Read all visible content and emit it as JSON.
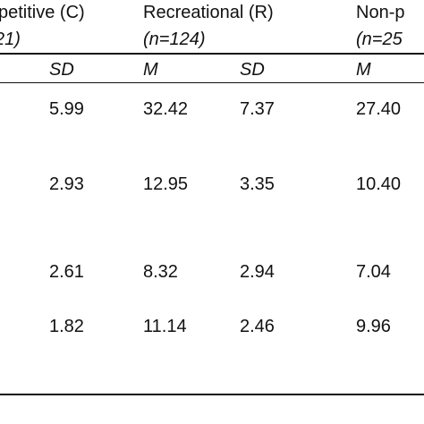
{
  "table": {
    "group_headers": [
      "petitive (C)",
      "Recreational (R)",
      "Non-p"
    ],
    "group_sizes": [
      "21)",
      "(n=124)",
      "(n=25"
    ],
    "stat_headers": [
      "SD",
      "M",
      "SD",
      "M"
    ],
    "rows": [
      [
        "5.99",
        "32.42",
        "7.37",
        "27.40"
      ],
      [
        "2.93",
        "12.95",
        "3.35",
        "10.40"
      ],
      [
        "2.61",
        "8.32",
        "2.94",
        "7.04"
      ],
      [
        "1.82",
        "11.14",
        "2.46",
        "9.96"
      ]
    ]
  }
}
